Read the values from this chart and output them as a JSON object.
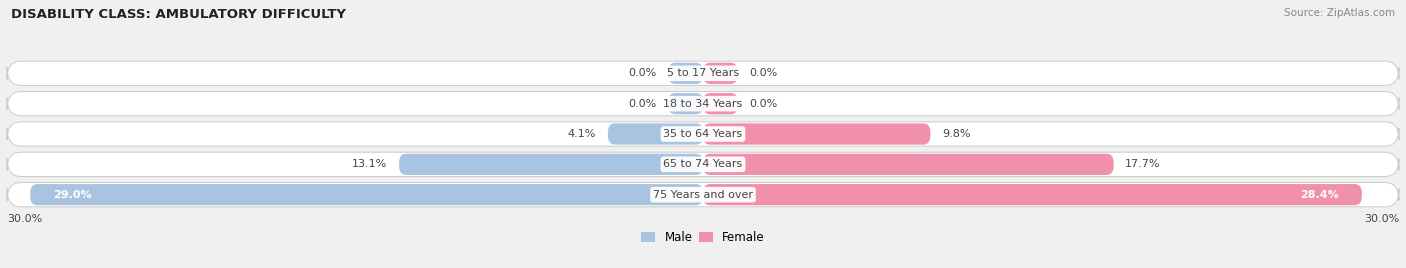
{
  "title": "DISABILITY CLASS: AMBULATORY DIFFICULTY",
  "source": "Source: ZipAtlas.com",
  "categories": [
    "5 to 17 Years",
    "18 to 34 Years",
    "35 to 64 Years",
    "65 to 74 Years",
    "75 Years and over"
  ],
  "male_values": [
    0.0,
    0.0,
    4.1,
    13.1,
    29.0
  ],
  "female_values": [
    0.0,
    0.0,
    9.8,
    17.7,
    28.4
  ],
  "male_color": "#a8c4e0",
  "female_color": "#f090aa",
  "bar_bg_color": "white",
  "bar_bg_edge": "#cccccc",
  "x_max": 30.0,
  "x_min": -30.0,
  "label_color": "#444444",
  "title_color": "#222222",
  "source_color": "#888888",
  "bg_color": "#f0f0f0",
  "bar_height": 0.7,
  "fig_width": 14.06,
  "fig_height": 2.68,
  "zero_stub": 1.5
}
